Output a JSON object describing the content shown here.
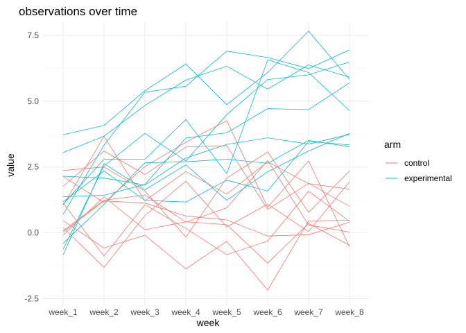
{
  "chart_data": {
    "type": "line",
    "title": "observations over time",
    "xlabel": "week",
    "ylabel": "value",
    "categories": [
      "week_1",
      "week_2",
      "week_3",
      "week_4",
      "week_5",
      "week_6",
      "week_7",
      "week_8"
    ],
    "ylim": [
      -2.75,
      8.0
    ],
    "yticks": [
      -2.5,
      0.0,
      2.5,
      5.0,
      7.5
    ],
    "ytick_labels": [
      "-2.5",
      "0.0",
      "2.5",
      "5.0",
      "7.5"
    ],
    "grid": true,
    "legend": {
      "title": "arm",
      "position": "right",
      "entries": [
        {
          "label": "control",
          "color": "#F8766D"
        },
        {
          "label": "experimental",
          "color": "#00BFC4"
        }
      ]
    },
    "series": [
      {
        "arm": "control",
        "values": [
          0.2,
          -1.31,
          0.66,
          1.96,
          0.23,
          1.09,
          0.05,
          1.94
        ]
      },
      {
        "arm": "control",
        "values": [
          1.13,
          -0.88,
          1.07,
          0.17,
          -0.83,
          -0.31,
          1.58,
          0.44
        ]
      },
      {
        "arm": "control",
        "values": [
          1.77,
          3.11,
          2.22,
          3.26,
          3.31,
          0.89,
          1.88,
          1.01
        ]
      },
      {
        "arm": "control",
        "values": [
          1.04,
          3.66,
          1.22,
          2.33,
          1.47,
          2.7,
          1.87,
          1.66
        ]
      },
      {
        "arm": "control",
        "values": [
          0.47,
          -0.58,
          -0.09,
          -1.37,
          -0.32,
          -2.17,
          0.45,
          0.48
        ]
      },
      {
        "arm": "control",
        "values": [
          2.37,
          2.5,
          1.59,
          -0.16,
          2.08,
          3.07,
          0.78,
          2.35
        ]
      },
      {
        "arm": "control",
        "values": [
          0.03,
          1.21,
          1.13,
          0.64,
          0.49,
          -0.12,
          -0.07,
          0.4
        ]
      },
      {
        "arm": "control",
        "values": [
          -0.09,
          1.37,
          0.12,
          0.42,
          0.31,
          -1.15,
          0.36,
          -0.47
        ]
      },
      {
        "arm": "control",
        "values": [
          0.08,
          1.24,
          1.44,
          0.41,
          0.95,
          2.75,
          0.3,
          0.03
        ]
      },
      {
        "arm": "control",
        "values": [
          2.14,
          1.15,
          2.52,
          3.44,
          4.26,
          0.97,
          2.73,
          -0.53
        ]
      },
      {
        "arm": "experimental",
        "values": [
          3.05,
          3.67,
          4.84,
          5.8,
          6.33,
          5.46,
          6.38,
          5.91
        ]
      },
      {
        "arm": "experimental",
        "values": [
          -0.84,
          2.63,
          1.64,
          2.58,
          1.24,
          2.32,
          3.11,
          3.78
        ]
      },
      {
        "arm": "experimental",
        "values": [
          2.15,
          2.08,
          1.82,
          2.84,
          3.36,
          3.61,
          3.37,
          3.74
        ]
      },
      {
        "arm": "experimental",
        "values": [
          -0.62,
          2.54,
          3.78,
          2.73,
          4.49,
          5.82,
          6.0,
          6.49
        ]
      },
      {
        "arm": "experimental",
        "values": [
          0.7,
          3.33,
          5.34,
          5.57,
          6.9,
          6.66,
          6.24,
          6.95
        ]
      },
      {
        "arm": "experimental",
        "values": [
          3.73,
          4.08,
          5.4,
          6.41,
          4.87,
          6.09,
          7.66,
          5.83
        ]
      },
      {
        "arm": "experimental",
        "values": [
          1.18,
          2.35,
          1.23,
          1.17,
          2.0,
          1.59,
          3.47,
          3.34
        ]
      },
      {
        "arm": "experimental",
        "values": [
          1.37,
          1.43,
          1.84,
          3.6,
          3.8,
          4.72,
          4.68,
          5.7
        ]
      },
      {
        "arm": "experimental",
        "values": [
          -0.4,
          1.08,
          2.66,
          2.7,
          2.8,
          2.64,
          3.51,
          3.27
        ]
      },
      {
        "arm": "experimental",
        "values": [
          1.09,
          2.8,
          2.8,
          4.3,
          2.25,
          6.57,
          6.09,
          4.64
        ]
      }
    ]
  }
}
